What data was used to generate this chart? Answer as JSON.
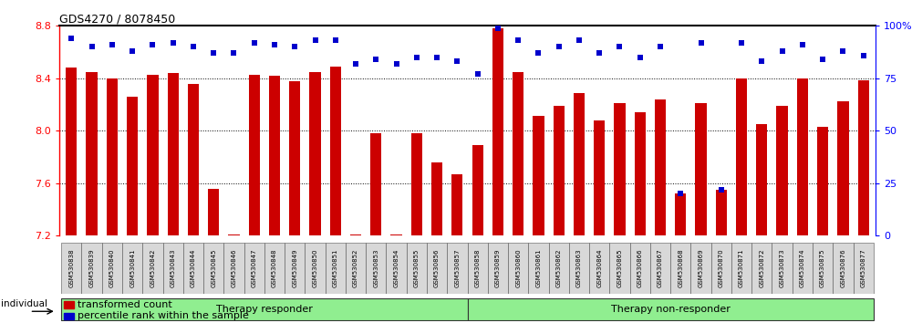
{
  "title": "GDS4270 / 8078450",
  "samples": [
    "GSM530838",
    "GSM530839",
    "GSM530840",
    "GSM530841",
    "GSM530842",
    "GSM530843",
    "GSM530844",
    "GSM530845",
    "GSM530846",
    "GSM530847",
    "GSM530848",
    "GSM530849",
    "GSM530850",
    "GSM530851",
    "GSM530852",
    "GSM530853",
    "GSM530854",
    "GSM530855",
    "GSM530856",
    "GSM530857",
    "GSM530858",
    "GSM530859",
    "GSM530860",
    "GSM530861",
    "GSM530862",
    "GSM530863",
    "GSM530864",
    "GSM530865",
    "GSM530866",
    "GSM530867",
    "GSM530868",
    "GSM530869",
    "GSM530870",
    "GSM530871",
    "GSM530872",
    "GSM530873",
    "GSM530874",
    "GSM530875",
    "GSM530876",
    "GSM530877"
  ],
  "transformed_count": [
    8.48,
    8.45,
    8.4,
    8.26,
    8.43,
    8.44,
    8.36,
    7.56,
    7.21,
    8.43,
    8.42,
    8.38,
    8.45,
    8.49,
    7.21,
    7.98,
    7.21,
    7.98,
    7.76,
    7.67,
    43,
    99,
    78,
    57,
    62,
    68,
    55,
    63,
    59,
    65,
    20,
    63,
    22,
    75,
    53,
    62,
    75,
    52,
    64,
    74
  ],
  "percentile_rank": [
    94,
    90,
    91,
    88,
    91,
    92,
    90,
    87,
    87,
    92,
    91,
    90,
    93,
    93,
    82,
    84,
    82,
    85,
    85,
    83,
    77,
    99,
    93,
    87,
    90,
    93,
    87,
    90,
    85,
    90,
    20,
    92,
    22,
    92,
    83,
    88,
    91,
    84,
    88,
    86
  ],
  "group_responder_count": 20,
  "group1_label": "Therapy responder",
  "group2_label": "Therapy non-responder",
  "ylim_left": [
    7.2,
    8.8
  ],
  "ylim_right": [
    0,
    100
  ],
  "yticks_left": [
    7.2,
    7.6,
    8.0,
    8.4,
    8.8
  ],
  "yticks_right": [
    0,
    25,
    50,
    75,
    100
  ],
  "bar_color": "#cc0000",
  "dot_color": "#0000cc",
  "group_bg_color": "#90ee90",
  "title_fontsize": 9,
  "individual_label": "individual"
}
